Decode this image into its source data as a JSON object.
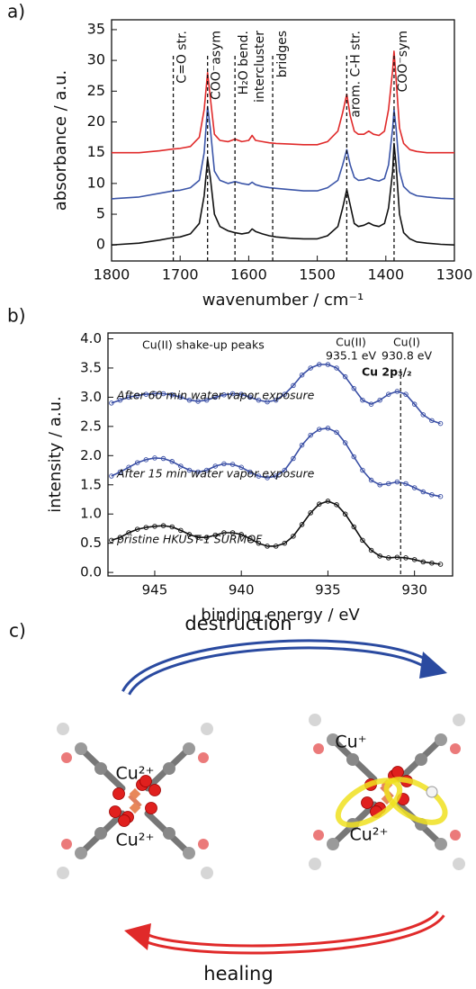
{
  "chart_data": [
    {
      "type": "line",
      "panel_label": "a)",
      "xlabel": "wavenumber / cm⁻¹",
      "ylabel": "absorbance / a.u.",
      "xlim": [
        1800,
        1300
      ],
      "ylim": [
        -2.6,
        36.6
      ],
      "xticks": [
        1800,
        1700,
        1600,
        1500,
        1400,
        1300
      ],
      "yticks": [
        0,
        5,
        10,
        15,
        20,
        25,
        30,
        35
      ],
      "x": [
        1800,
        1760,
        1730,
        1710,
        1700,
        1685,
        1672,
        1665,
        1660,
        1656,
        1650,
        1642,
        1630,
        1620,
        1610,
        1600,
        1595,
        1590,
        1580,
        1570,
        1560,
        1540,
        1520,
        1500,
        1485,
        1470,
        1463,
        1457,
        1452,
        1446,
        1440,
        1432,
        1425,
        1418,
        1410,
        1402,
        1396,
        1390,
        1388,
        1385,
        1380,
        1374,
        1365,
        1355,
        1340,
        1320,
        1300
      ],
      "series": [
        {
          "color": "#e02a2a",
          "values": [
            15,
            15,
            15.3,
            15.6,
            15.7,
            16,
            17.5,
            22,
            28,
            24,
            18,
            17,
            16.8,
            17.2,
            16.8,
            17,
            17.8,
            17,
            16.8,
            16.6,
            16.5,
            16.4,
            16.3,
            16.3,
            16.8,
            18.5,
            21.5,
            24.5,
            21,
            18.5,
            18,
            18,
            18.5,
            18,
            17.8,
            18.5,
            22,
            28.5,
            31.5,
            27,
            19,
            16.5,
            15.5,
            15.2,
            15,
            15,
            15
          ]
        },
        {
          "color": "#3b55a8",
          "values": [
            7.5,
            7.8,
            8.4,
            8.8,
            8.9,
            9.3,
            10.5,
            15,
            22.5,
            19,
            12,
            10.5,
            10,
            10.3,
            10,
            9.8,
            10.2,
            9.8,
            9.5,
            9.3,
            9.2,
            9,
            8.8,
            8.8,
            9.3,
            10.5,
            13,
            15.5,
            13,
            11,
            10.5,
            10.6,
            10.9,
            10.6,
            10.4,
            10.8,
            13,
            19,
            22,
            19,
            12,
            9.5,
            8.5,
            8,
            7.8,
            7.6,
            7.5
          ]
        },
        {
          "color": "#111111",
          "values": [
            0,
            0.3,
            0.8,
            1.2,
            1.3,
            1.8,
            3.5,
            8,
            14,
            11,
            5,
            3,
            2.3,
            2,
            1.8,
            2,
            2.6,
            2.2,
            1.8,
            1.5,
            1.3,
            1.1,
            1,
            1,
            1.5,
            3,
            6,
            9,
            6.5,
            3.5,
            3,
            3.2,
            3.6,
            3.2,
            3,
            3.5,
            6,
            12,
            16.5,
            13,
            5,
            2,
            1,
            0.5,
            0.3,
            0.1,
            0
          ]
        }
      ],
      "annotations": [
        {
          "x": 1710,
          "label": [
            "C=O str."
          ]
        },
        {
          "x": 1660,
          "label": [
            "COO⁻asym"
          ]
        },
        {
          "x": 1620,
          "label": [
            "H₂O bend."
          ]
        },
        {
          "x": 1565,
          "label": [
            "intercluster",
            "bridges"
          ]
        },
        {
          "x": 1457,
          "label": [
            "arom. C-H str."
          ]
        },
        {
          "x": 1388,
          "label": [
            "COO⁻sym"
          ]
        }
      ]
    },
    {
      "type": "scatter",
      "panel_label": "b)",
      "xlabel": "binding energy / eV",
      "ylabel": "intensity / a.u.",
      "xlim": [
        947.7,
        927.8
      ],
      "ylim": [
        -0.06,
        4.1
      ],
      "xticks": [
        945,
        940,
        935,
        930
      ],
      "yticks": [
        {
          "value": 0,
          "label": "0.0"
        },
        0.5,
        {
          "value": 1,
          "label": "1.0"
        },
        1.5,
        {
          "value": 2,
          "label": "2.0"
        },
        2.5,
        {
          "value": 3,
          "label": "3.0"
        },
        3.5,
        {
          "value": 4,
          "label": "4.0"
        }
      ],
      "x": [
        947.5,
        947,
        946.5,
        946,
        945.5,
        945,
        944.5,
        944,
        943.5,
        943,
        942.5,
        942,
        941.5,
        941,
        940.5,
        940,
        939.5,
        939,
        938.5,
        938,
        937.5,
        937,
        936.5,
        936,
        935.5,
        935,
        934.5,
        934,
        933.5,
        933,
        932.5,
        932,
        931.5,
        931,
        930.5,
        930,
        929.5,
        929,
        928.5
      ],
      "series": [
        {
          "name": "After 60 min water vapor exposure",
          "color": "#3a4fa5",
          "values": [
            2.9,
            2.95,
            3.0,
            3.03,
            3.05,
            3.06,
            3.06,
            3.04,
            3.0,
            2.95,
            2.93,
            2.95,
            3.0,
            3.04,
            3.06,
            3.05,
            3.0,
            2.95,
            2.92,
            2.95,
            3.05,
            3.2,
            3.38,
            3.5,
            3.56,
            3.56,
            3.5,
            3.35,
            3.15,
            2.95,
            2.88,
            2.95,
            3.05,
            3.1,
            3.05,
            2.88,
            2.7,
            2.6,
            2.55
          ]
        },
        {
          "name": "After 15 min water vapor exposure",
          "color": "#3a4fa5",
          "values": [
            1.65,
            1.72,
            1.8,
            1.88,
            1.93,
            1.96,
            1.95,
            1.9,
            1.82,
            1.75,
            1.72,
            1.75,
            1.82,
            1.86,
            1.85,
            1.8,
            1.72,
            1.65,
            1.62,
            1.65,
            1.75,
            1.95,
            2.18,
            2.35,
            2.45,
            2.47,
            2.4,
            2.22,
            1.98,
            1.75,
            1.58,
            1.5,
            1.52,
            1.55,
            1.52,
            1.45,
            1.38,
            1.33,
            1.3
          ]
        },
        {
          "name": "pristine HKUST-1 SURMOF",
          "color": "#111111",
          "values": [
            0.55,
            0.6,
            0.68,
            0.74,
            0.77,
            0.79,
            0.8,
            0.78,
            0.72,
            0.65,
            0.6,
            0.6,
            0.64,
            0.68,
            0.68,
            0.65,
            0.58,
            0.5,
            0.45,
            0.45,
            0.5,
            0.62,
            0.82,
            1.02,
            1.17,
            1.22,
            1.16,
            1.0,
            0.78,
            0.55,
            0.38,
            0.28,
            0.25,
            0.26,
            0.25,
            0.22,
            0.18,
            0.16,
            0.14
          ]
        }
      ],
      "vline": 930.8,
      "annotations": [
        {
          "label": [
            "Cu(II) shake-up peaks"
          ]
        },
        {
          "label": [
            "Cu(II)",
            "935.1 eV"
          ]
        },
        {
          "label": [
            "Cu(I)",
            "930.8 eV"
          ]
        },
        {
          "label": [
            "Cu 2p₃/₂"
          ]
        }
      ]
    }
  ],
  "diagram": {
    "panel_label": "c)",
    "top_arrow": "destruction",
    "bottom_arrow": "healing",
    "left_cluster": [
      "Cu²⁺",
      "Cu²⁺"
    ],
    "right_cluster": [
      "Cu⁺",
      "Cu²⁺"
    ]
  }
}
